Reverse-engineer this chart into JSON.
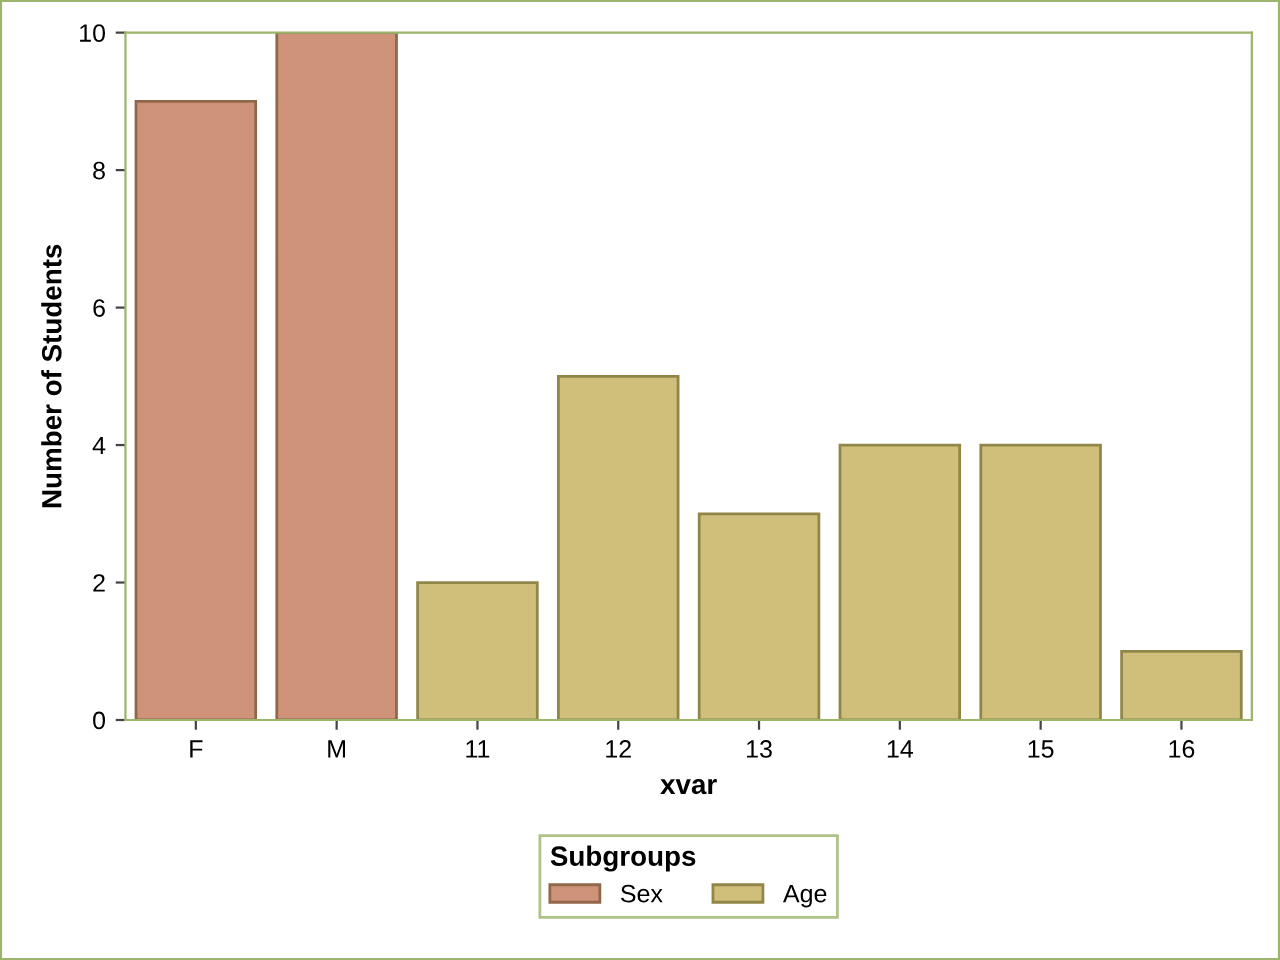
{
  "chart_data": {
    "type": "bar",
    "xlabel": "xvar",
    "ylabel": "Number of Students",
    "legend_title": "Subgroups",
    "categories": [
      "F",
      "M",
      "11",
      "12",
      "13",
      "14",
      "15",
      "16"
    ],
    "series": [
      {
        "name": "Sex",
        "color": "#cf937a",
        "values": [
          9,
          10,
          null,
          null,
          null,
          null,
          null,
          null
        ]
      },
      {
        "name": "Age",
        "color": "#cfbf7a",
        "values": [
          null,
          null,
          2,
          5,
          3,
          4,
          4,
          1
        ]
      }
    ],
    "ylim": [
      0,
      10
    ],
    "yticks": [
      0,
      2,
      4,
      6,
      8,
      10
    ],
    "grid": false,
    "legend": "bottom"
  }
}
